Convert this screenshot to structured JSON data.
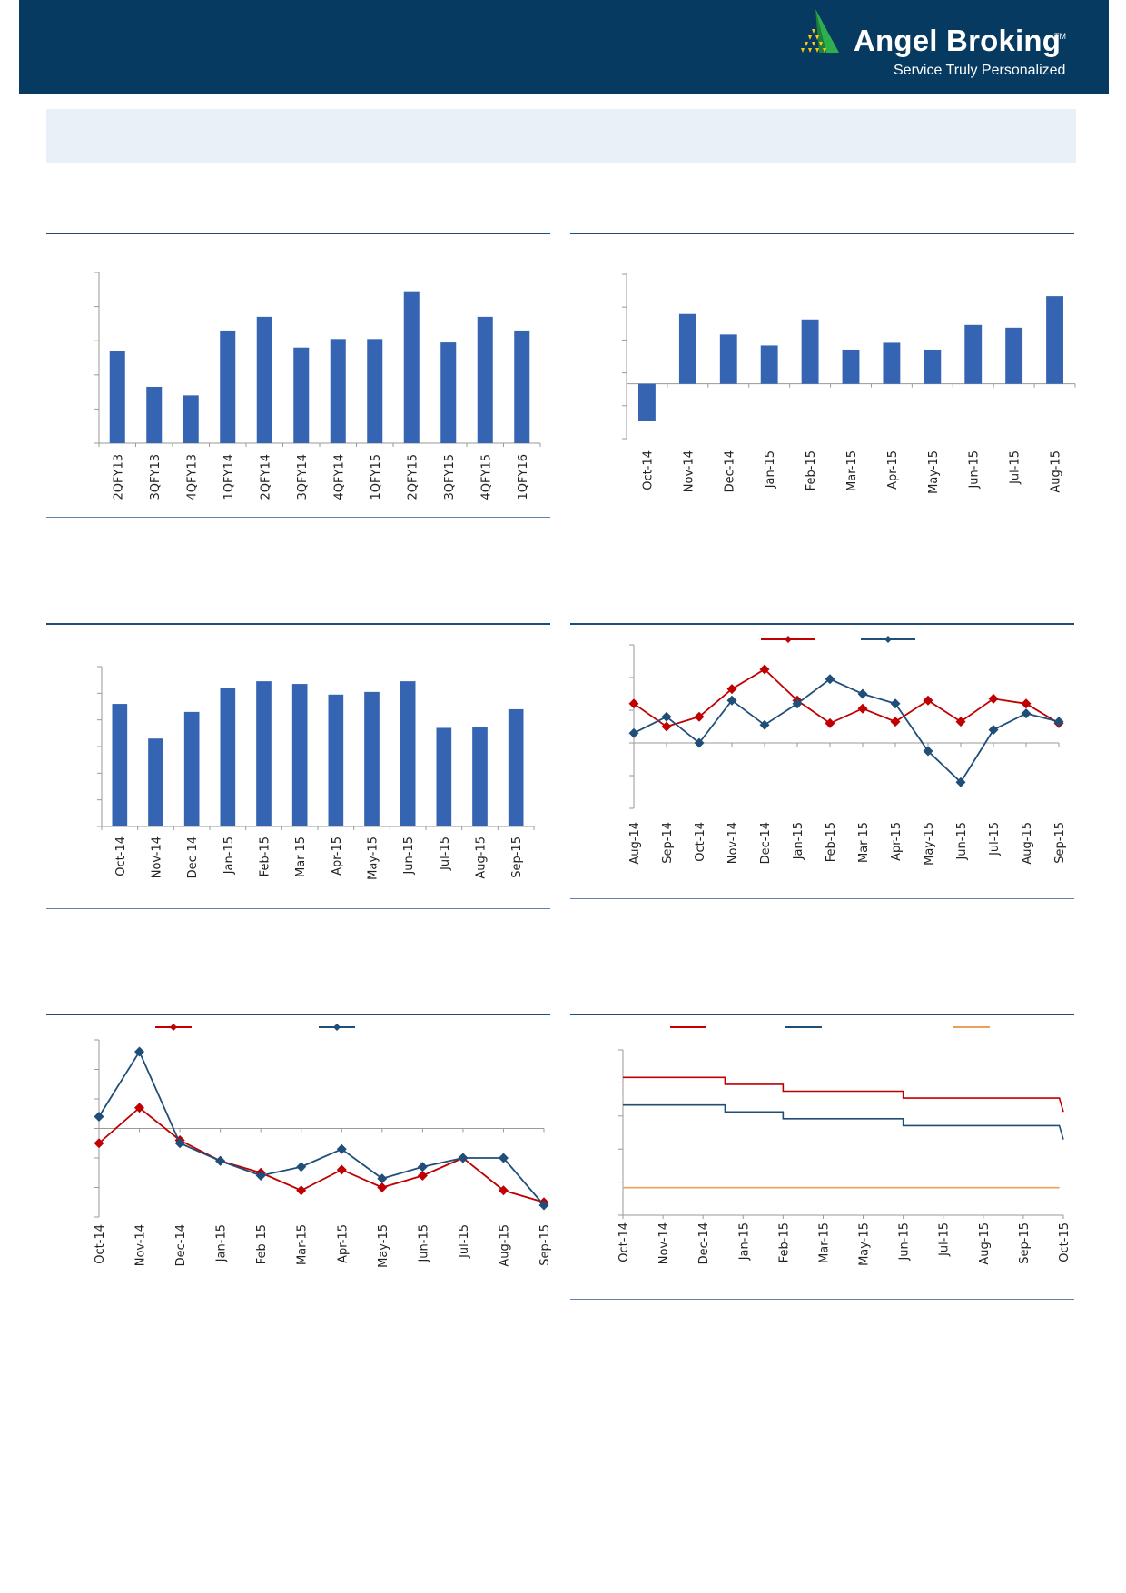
{
  "brand": {
    "name": "Angel Broking",
    "tm": "TM",
    "tagline": "Service Truly Personalized"
  },
  "colors": {
    "header": "#073a61",
    "bar": "#3464b2",
    "line_red": "#c00000",
    "line_blue": "#1f4e79",
    "line_orange": "#e8a05a",
    "title_box": "#eaf0f8"
  },
  "chart_data": [
    {
      "id": "chart1",
      "type": "bar",
      "categories": [
        "2QFY13",
        "3QFY13",
        "4QFY13",
        "1QFY14",
        "2QFY14",
        "3QFY14",
        "4QFY14",
        "1QFY15",
        "2QFY15",
        "3QFY15",
        "4QFY15",
        "1QFY16"
      ],
      "values": [
        5.4,
        3.3,
        2.8,
        6.6,
        7.4,
        5.6,
        6.1,
        6.1,
        8.9,
        5.9,
        7.4,
        6.6
      ],
      "ylim": [
        0,
        10
      ],
      "yticks": 6,
      "grid": false
    },
    {
      "id": "chart2",
      "type": "bar",
      "categories": [
        "Oct-14",
        "Nov-14",
        "Dec-14",
        "Jan-15",
        "Feb-15",
        "Mar-15",
        "Apr-15",
        "May-15",
        "Jun-15",
        "Jul-15",
        "Aug-15"
      ],
      "values": [
        -2.7,
        5.1,
        3.6,
        2.8,
        4.7,
        2.5,
        3.0,
        2.5,
        4.3,
        4.1,
        6.4
      ],
      "ylim": [
        -4,
        8
      ],
      "yticks": 6,
      "grid": false
    },
    {
      "id": "chart3",
      "type": "bar",
      "categories": [
        "Oct-14",
        "Nov-14",
        "Dec-14",
        "Jan-15",
        "Feb-15",
        "Mar-15",
        "Apr-15",
        "May-15",
        "Jun-15",
        "Jul-15",
        "Aug-15",
        "Sep-15"
      ],
      "values": [
        46,
        33,
        43,
        52,
        54.5,
        53.5,
        49.5,
        50.5,
        54.5,
        37,
        37.5,
        44
      ],
      "ylim": [
        0,
        60
      ],
      "yticks": 7,
      "grid": false
    },
    {
      "id": "chart4",
      "type": "line",
      "categories": [
        "Aug-14",
        "Sep-14",
        "Oct-14",
        "Nov-14",
        "Dec-14",
        "Jan-15",
        "Feb-15",
        "Mar-15",
        "Apr-15",
        "May-15",
        "Jun-15",
        "Jul-15",
        "Aug-15",
        "Sep-15"
      ],
      "series": [
        {
          "name": "",
          "color": "red",
          "values": [
            2.4,
            1.0,
            1.6,
            3.3,
            4.5,
            2.6,
            1.2,
            2.1,
            1.3,
            2.6,
            1.3,
            2.7,
            2.4,
            1.2
          ]
        },
        {
          "name": "",
          "color": "blue",
          "values": [
            0.6,
            1.6,
            0.0,
            2.6,
            1.1,
            2.4,
            3.9,
            3.0,
            2.4,
            -0.5,
            -2.4,
            0.8,
            1.8,
            1.3
          ]
        }
      ],
      "ylim": [
        -4,
        6
      ],
      "yticks": 6,
      "zero_line": true,
      "legend": "top-center"
    },
    {
      "id": "chart5",
      "type": "line",
      "categories": [
        "Oct-14",
        "Nov-14",
        "Dec-14",
        "Jan-15",
        "Feb-15",
        "Mar-15",
        "Apr-15",
        "May-15",
        "Jun-15",
        "Jul-15",
        "Aug-15",
        "Sep-15"
      ],
      "series": [
        {
          "name": "",
          "color": "red",
          "values": [
            -0.5,
            0.7,
            -0.4,
            -1.1,
            -1.5,
            -2.1,
            -1.4,
            -2.0,
            -1.6,
            -1.0,
            -2.1,
            -2.5
          ]
        },
        {
          "name": "",
          "color": "blue",
          "values": [
            0.4,
            2.6,
            -0.5,
            -1.1,
            -1.6,
            -1.3,
            -0.7,
            -1.7,
            -1.3,
            -1.0,
            -1.0,
            -2.6
          ]
        }
      ],
      "ylim": [
        -3,
        3
      ],
      "yticks": 7,
      "zero_line": true,
      "legend": "top-center"
    },
    {
      "id": "chart6",
      "type": "line",
      "categories": [
        "Oct-14",
        "Nov-14",
        "Dec-14",
        "Jan-15",
        "Feb-15",
        "Mar-15",
        "May-15",
        "Jun-15",
        "Jul-15",
        "Aug-15",
        "Sep-15",
        "Oct-15"
      ],
      "series": [
        {
          "name": "",
          "color": "red",
          "shape": "step",
          "points": [
            [
              0,
              8.0
            ],
            [
              2.55,
              8.0
            ],
            [
              2.55,
              7.75
            ],
            [
              4.0,
              7.75
            ],
            [
              4.0,
              7.5
            ],
            [
              7.0,
              7.5
            ],
            [
              7.0,
              7.25
            ],
            [
              10.9,
              7.25
            ],
            [
              11.0,
              6.75
            ]
          ]
        },
        {
          "name": "",
          "color": "blue",
          "shape": "step",
          "points": [
            [
              0,
              7.0
            ],
            [
              2.55,
              7.0
            ],
            [
              2.55,
              6.75
            ],
            [
              4.0,
              6.75
            ],
            [
              4.0,
              6.5
            ],
            [
              7.0,
              6.5
            ],
            [
              7.0,
              6.25
            ],
            [
              10.9,
              6.25
            ],
            [
              11.0,
              5.75
            ]
          ]
        },
        {
          "name": "",
          "color": "orange",
          "points": [
            [
              0,
              4.0
            ],
            [
              10.9,
              4.0
            ]
          ]
        }
      ],
      "ylim": [
        3,
        9
      ],
      "yticks": 6,
      "legend": "top-center"
    }
  ]
}
